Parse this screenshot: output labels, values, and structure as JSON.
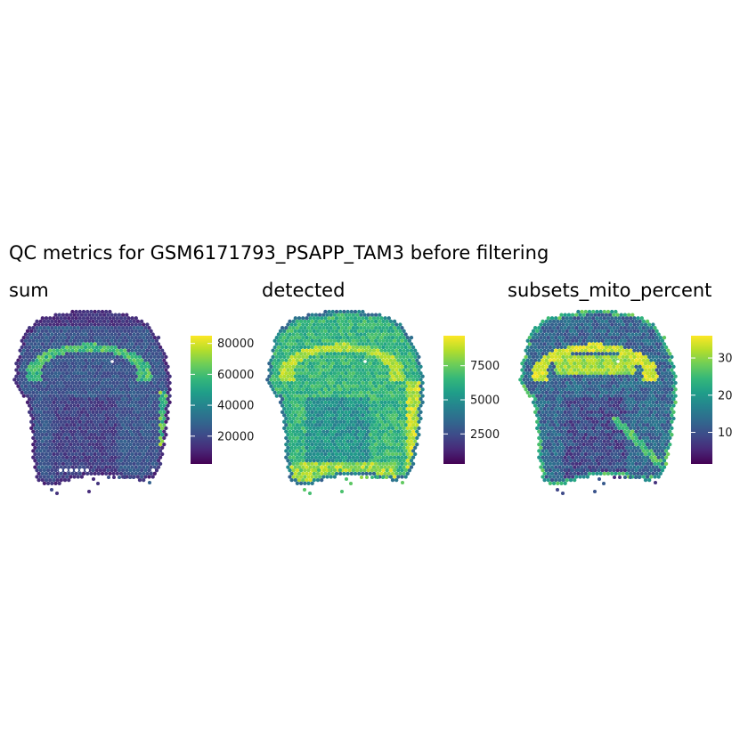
{
  "title": "QC metrics for GSM6171793_PSAPP_TAM3 before filtering",
  "colormap": {
    "name": "viridis",
    "stops": [
      "#440154",
      "#482878",
      "#3e4a89",
      "#31688e",
      "#26828e",
      "#1f9e89",
      "#35b779",
      "#6ece58",
      "#b5de2b",
      "#fde725"
    ]
  },
  "chart_data": [
    {
      "type": "heatmap",
      "title": "sum",
      "legend": {
        "min": 2000,
        "max": 85000,
        "ticks": [
          20000,
          40000,
          60000,
          80000
        ],
        "tick_labels": [
          "20000",
          "40000",
          "60000",
          "80000"
        ]
      },
      "pattern": "sum",
      "grid": false
    },
    {
      "type": "heatmap",
      "title": "detected",
      "legend": {
        "min": 300,
        "max": 9700,
        "ticks": [
          2500,
          5000,
          7500
        ],
        "tick_labels": [
          "2500",
          "5000",
          "7500"
        ]
      },
      "pattern": "detected",
      "grid": false
    },
    {
      "type": "heatmap",
      "title": "subsets_mito_percent",
      "legend": {
        "min": 1.5,
        "max": 36,
        "ticks": [
          10,
          20,
          30
        ],
        "tick_labels": [
          "10",
          "20",
          "30"
        ]
      },
      "pattern": "mito",
      "grid": false
    }
  ]
}
